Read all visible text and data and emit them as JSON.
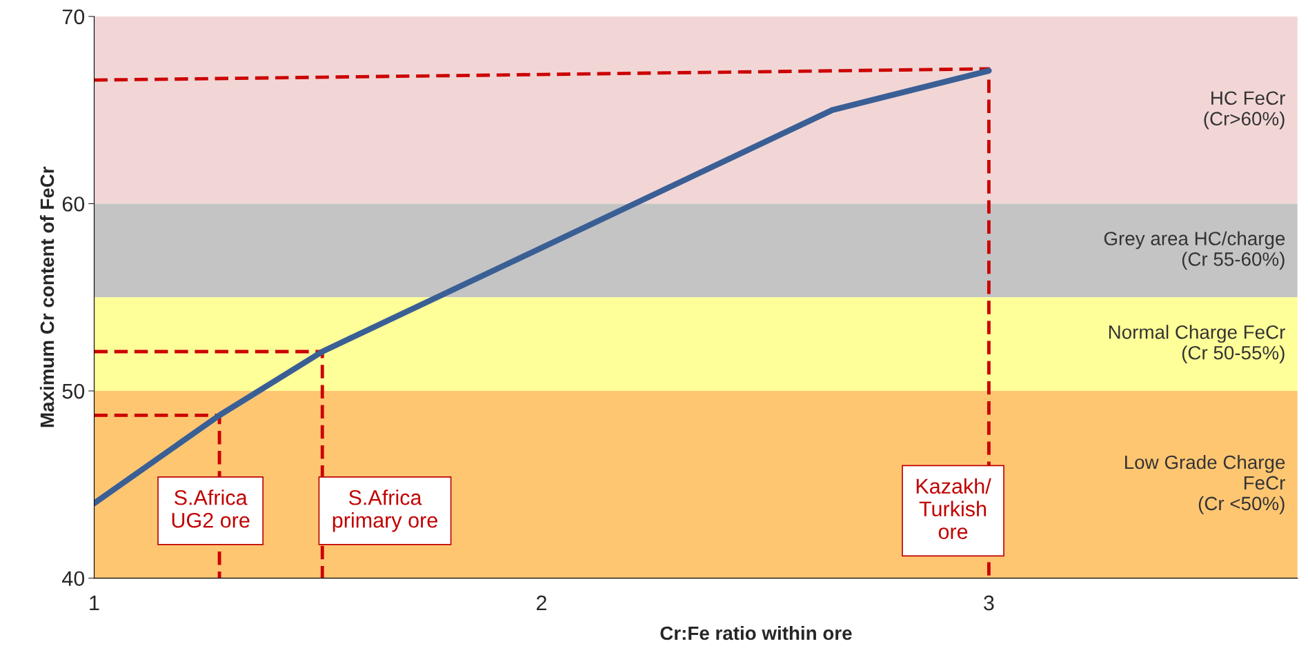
{
  "chart_data": {
    "type": "line",
    "xlabel": "Cr:Fe ratio within ore",
    "ylabel": "Maximum Cr content of FeCr",
    "xlim": [
      1,
      3.69
    ],
    "ylim": [
      40,
      70
    ],
    "xticks": [
      1,
      2,
      3
    ],
    "yticks": [
      40,
      50,
      60,
      70
    ],
    "grid": false,
    "legend": false,
    "marker": "none",
    "series": [
      {
        "x": [
          1,
          1.28,
          1.51,
          2.65,
          3.0
        ],
        "values": [
          44,
          48.7,
          52.1,
          65,
          67.1
        ],
        "color": "#3a5f95",
        "line_style": "solid"
      },
      {
        "x": [
          1,
          1.28,
          1.28
        ],
        "values": [
          48.7,
          48.7,
          40
        ],
        "color": "#cc0000",
        "line_style": "dashed"
      },
      {
        "x": [
          1,
          1.51,
          1.51
        ],
        "values": [
          52.1,
          52.1,
          40
        ],
        "color": "#cc0000",
        "line_style": "dashed"
      },
      {
        "x": [
          1,
          3.0,
          3.0
        ],
        "values": [
          66.6,
          67.2,
          40
        ],
        "color": "#cc0000",
        "line_style": "dashed"
      }
    ],
    "bands": [
      {
        "axis": "y",
        "from": 60,
        "to": 70,
        "label": "HC FeCr\n(Cr>60%)",
        "color": "#f2d6d6"
      },
      {
        "axis": "y",
        "from": 55,
        "to": 60,
        "label": "Grey area HC/charge\n(Cr 55-60%)",
        "color": "#c4c4c4"
      },
      {
        "axis": "y",
        "from": 50,
        "to": 55,
        "label": "Normal Charge FeCr\n(Cr 50-55%)",
        "color": "#ffff99"
      },
      {
        "axis": "y",
        "from": 40,
        "to": 50,
        "label": "Low Grade Charge\nFeCr\n(Cr <50%)",
        "color": "#ffc672"
      }
    ],
    "annotations": [
      "S.Africa\nUG2 ore",
      "S.Africa\nprimary ore",
      "Kazakh/\nTurkish\nore"
    ]
  }
}
